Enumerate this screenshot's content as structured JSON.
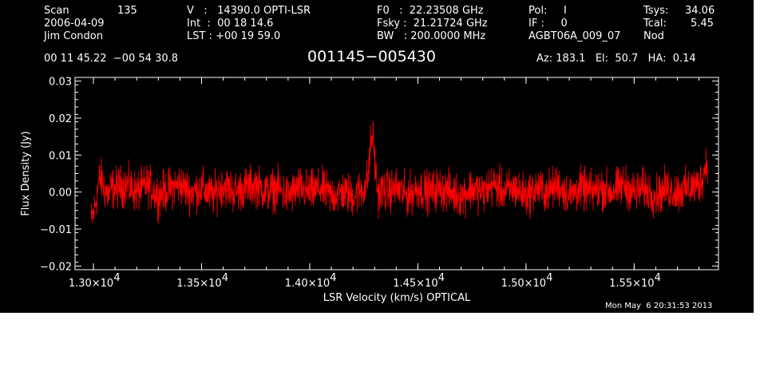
{
  "header": {
    "scan_label": "Scan",
    "scan_value": "135",
    "date": "2006-04-09",
    "observer": "Jim Condon",
    "v_line": "V   :   14390.0 OPTI-LSR",
    "int_line": "Int  :  00 18 14.6",
    "lst_line": "LST : +00 19 59.0",
    "f0_line": "F0   :  22.23508 GHz",
    "fsky_line": "Fsky :  21.21724 GHz",
    "bw_line": "BW   : 200.0000 MHz",
    "pol_line": "Pol:     I",
    "if_line": "IF :     0",
    "project": "AGBT06A_009_07",
    "tsys_label": "Tsys:",
    "tsys_value": "34.06",
    "tcal_label": "Tcal:",
    "tcal_value": "5.45",
    "mode": "Nod",
    "coords": "00 11 45.22  −00 54 30.8",
    "source": "001145−005430",
    "az_el_ha": "Az: 183.1   El:  50.7   HA:  0.14"
  },
  "timestamp": "Mon May  6 20:31:53 2013",
  "colors": {
    "background": "#000000",
    "axes": "#ffffff",
    "trace": "#ff0000"
  },
  "chart_data": {
    "type": "line",
    "xlabel": "LSR Velocity (km/s) OPTICAL",
    "ylabel": "Flux Density (Jy)",
    "xlim": [
      12915,
      15890
    ],
    "ylim": [
      -0.021,
      0.031
    ],
    "xticks": [
      13000,
      13500,
      14000,
      14500,
      15000,
      15500
    ],
    "xtick_labels": [
      {
        "mant": "1.30×10",
        "exp": "4"
      },
      {
        "mant": "1.35×10",
        "exp": "4"
      },
      {
        "mant": "1.40×10",
        "exp": "4"
      },
      {
        "mant": "1.45×10",
        "exp": "4"
      },
      {
        "mant": "1.50×10",
        "exp": "4"
      },
      {
        "mant": "1.55×10",
        "exp": "4"
      }
    ],
    "yticks": [
      -0.02,
      -0.01,
      0.0,
      0.01,
      0.02,
      0.03
    ],
    "ytick_labels": [
      "−0.02",
      "−0.01",
      "0.00",
      "0.01",
      "0.02",
      "0.03"
    ],
    "grid": false,
    "legend": "none",
    "series": [
      {
        "color": "#ff0000",
        "x": [
          12990,
          13000,
          13010,
          13020,
          13030,
          13040,
          13050,
          13060,
          13070,
          13080,
          13100,
          13150,
          13200,
          13250,
          13300,
          13350,
          13400,
          13450,
          13500,
          13550,
          13600,
          13650,
          13700,
          13750,
          13800,
          13850,
          13900,
          13950,
          14000,
          14050,
          14100,
          14150,
          14200,
          14250,
          14270,
          14280,
          14290,
          14300,
          14310,
          14320,
          14330,
          14340,
          14350,
          14400,
          14450,
          14500,
          14550,
          14600,
          14650,
          14700,
          14750,
          14800,
          14850,
          14900,
          14950,
          15000,
          15050,
          15100,
          15150,
          15200,
          15250,
          15300,
          15350,
          15400,
          15450,
          15500,
          15550,
          15600,
          15650,
          15700,
          15750,
          15800,
          15810,
          15820,
          15830,
          15840
        ],
        "y": [
          -0.008,
          -0.006,
          -0.003,
          0.001,
          0.004,
          0.003,
          0.001,
          0.0,
          -0.001,
          0.001,
          0.001,
          0.002,
          0.0,
          0.002,
          -0.001,
          0.001,
          0.002,
          0.0,
          0.001,
          -0.001,
          0.002,
          0.0,
          0.001,
          0.002,
          0.0,
          0.001,
          -0.001,
          0.001,
          0.0,
          0.001,
          -0.001,
          0.0,
          -0.001,
          0.001,
          0.004,
          0.012,
          0.016,
          0.009,
          0.002,
          -0.001,
          0.0,
          0.001,
          0.0,
          0.001,
          -0.001,
          0.001,
          0.0,
          0.001,
          0.0,
          -0.001,
          0.001,
          0.0,
          0.002,
          0.0,
          0.001,
          -0.001,
          0.001,
          0.0,
          0.002,
          -0.001,
          0.001,
          0.0,
          0.001,
          0.0,
          0.002,
          0.0,
          0.001,
          -0.001,
          0.001,
          0.0,
          0.001,
          0.002,
          0.003,
          0.005,
          0.007,
          0.009
        ]
      }
    ]
  }
}
